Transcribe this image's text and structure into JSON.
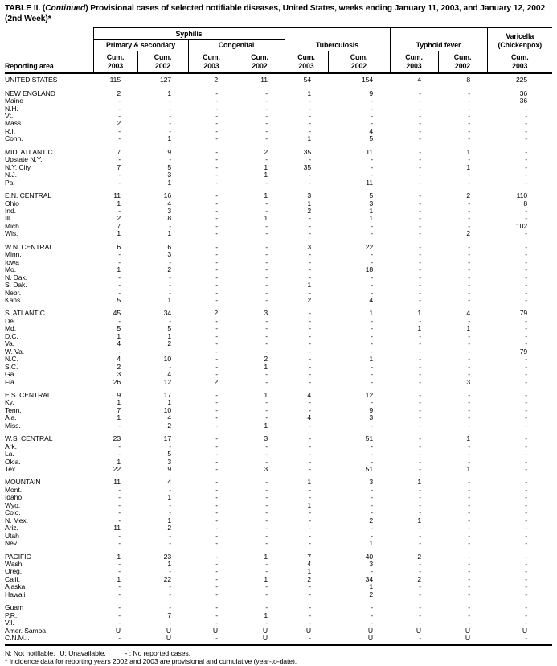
{
  "title": {
    "part1": "TABLE II. (",
    "part2_italic": "Continued",
    "part3": ") Provisional cases of selected notifiable diseases, United States, weeks ending January 11, 2003, and January 12, 2002",
    "line2": "(2nd Week)*"
  },
  "header": {
    "reporting_area_label": "Reporting area",
    "syphilis": "Syphilis",
    "primary_secondary": "Primary & secondary",
    "congenital": "Congenital",
    "tuberculosis": "Tuberculosis",
    "typhoid": "Typhoid fever",
    "varicella_line1": "Varicella",
    "varicella_line2": "(Chickenpox)",
    "cum_label": "Cum.",
    "years": [
      "2003",
      "2002",
      "2003",
      "2002",
      "2003",
      "2002",
      "2003",
      "2002",
      "2003"
    ]
  },
  "sections": [
    {
      "rows": [
        [
          "UNITED STATES",
          "115",
          "127",
          "2",
          "11",
          "54",
          "154",
          "4",
          "8",
          "225"
        ]
      ]
    },
    {
      "rows": [
        [
          "NEW ENGLAND",
          "2",
          "1",
          "-",
          "-",
          "1",
          "9",
          "-",
          "-",
          "36"
        ],
        [
          "Maine",
          "-",
          "-",
          "-",
          "-",
          "-",
          "-",
          "-",
          "-",
          "36"
        ],
        [
          "N.H.",
          "-",
          "-",
          "-",
          "-",
          "-",
          "-",
          "-",
          "-",
          "-"
        ],
        [
          "Vt.",
          "-",
          "-",
          "-",
          "-",
          "-",
          "-",
          "-",
          "-",
          "-"
        ],
        [
          "Mass.",
          "2",
          "-",
          "-",
          "-",
          "-",
          "-",
          "-",
          "-",
          "-"
        ],
        [
          "R.I.",
          "-",
          "-",
          "-",
          "-",
          "-",
          "4",
          "-",
          "-",
          "-"
        ],
        [
          "Conn.",
          "-",
          "1",
          "-",
          "-",
          "1",
          "5",
          "-",
          "-",
          "-"
        ]
      ]
    },
    {
      "rows": [
        [
          "MID. ATLANTIC",
          "7",
          "9",
          "-",
          "2",
          "35",
          "11",
          "-",
          "1",
          "-"
        ],
        [
          "Upstate N.Y.",
          "-",
          "-",
          "-",
          "-",
          "-",
          "-",
          "-",
          "-",
          "-"
        ],
        [
          "N.Y. City",
          "7",
          "5",
          "-",
          "1",
          "35",
          "-",
          "-",
          "1",
          "-"
        ],
        [
          "N.J.",
          "-",
          "3",
          "-",
          "1",
          "-",
          "-",
          "-",
          "-",
          "-"
        ],
        [
          "Pa.",
          "-",
          "1",
          "-",
          "-",
          "-",
          "11",
          "-",
          "-",
          "-"
        ]
      ]
    },
    {
      "rows": [
        [
          "E.N. CENTRAL",
          "11",
          "16",
          "-",
          "1",
          "3",
          "5",
          "-",
          "2",
          "110"
        ],
        [
          "Ohio",
          "1",
          "4",
          "-",
          "-",
          "1",
          "3",
          "-",
          "-",
          "8"
        ],
        [
          "Ind.",
          "-",
          "3",
          "-",
          "-",
          "2",
          "1",
          "-",
          "-",
          "-"
        ],
        [
          "Ill.",
          "2",
          "8",
          "-",
          "1",
          "-",
          "1",
          "-",
          "-",
          "-"
        ],
        [
          "Mich.",
          "7",
          "-",
          "-",
          "-",
          "-",
          "-",
          "-",
          "-",
          "102"
        ],
        [
          "Wis.",
          "1",
          "1",
          "-",
          "-",
          "-",
          "-",
          "-",
          "2",
          "-"
        ]
      ]
    },
    {
      "rows": [
        [
          "W.N. CENTRAL",
          "6",
          "6",
          "-",
          "-",
          "3",
          "22",
          "-",
          "-",
          "-"
        ],
        [
          "Minn.",
          "-",
          "3",
          "-",
          "-",
          "-",
          "-",
          "-",
          "-",
          "-"
        ],
        [
          "Iowa",
          "-",
          "-",
          "-",
          "-",
          "-",
          "-",
          "-",
          "-",
          "-"
        ],
        [
          "Mo.",
          "1",
          "2",
          "-",
          "-",
          "-",
          "18",
          "-",
          "-",
          "-"
        ],
        [
          "N. Dak.",
          "-",
          "-",
          "-",
          "-",
          "-",
          "-",
          "-",
          "-",
          "-"
        ],
        [
          "S. Dak.",
          "-",
          "-",
          "-",
          "-",
          "1",
          "-",
          "-",
          "-",
          "-"
        ],
        [
          "Nebr.",
          "-",
          "-",
          "-",
          "-",
          "-",
          "-",
          "-",
          "-",
          "-"
        ],
        [
          "Kans.",
          "5",
          "1",
          "-",
          "-",
          "2",
          "4",
          "-",
          "-",
          "-"
        ]
      ]
    },
    {
      "rows": [
        [
          "S. ATLANTIC",
          "45",
          "34",
          "2",
          "3",
          "-",
          "1",
          "1",
          "4",
          "79"
        ],
        [
          "Del.",
          "-",
          "-",
          "-",
          "-",
          "-",
          "-",
          "-",
          "-",
          "-"
        ],
        [
          "Md.",
          "5",
          "5",
          "-",
          "-",
          "-",
          "-",
          "1",
          "1",
          "-"
        ],
        [
          "D.C.",
          "1",
          "1",
          "-",
          "-",
          "-",
          "-",
          "-",
          "-",
          "-"
        ],
        [
          "Va.",
          "4",
          "2",
          "-",
          "-",
          "-",
          "-",
          "-",
          "-",
          "-"
        ],
        [
          "W. Va.",
          "-",
          "-",
          "-",
          "-",
          "-",
          "-",
          "-",
          "-",
          "79"
        ],
        [
          "N.C.",
          "4",
          "10",
          "-",
          "2",
          "-",
          "1",
          "-",
          "-",
          "-"
        ],
        [
          "S.C.",
          "2",
          "-",
          "-",
          "1",
          "-",
          "-",
          "-",
          "-",
          "-"
        ],
        [
          "Ga.",
          "3",
          "4",
          "-",
          "-",
          "-",
          "-",
          "-",
          "-",
          "-"
        ],
        [
          "Fla.",
          "26",
          "12",
          "2",
          "-",
          "-",
          "-",
          "-",
          "3",
          "-"
        ]
      ]
    },
    {
      "rows": [
        [
          "E.S. CENTRAL",
          "9",
          "17",
          "-",
          "1",
          "4",
          "12",
          "-",
          "-",
          "-"
        ],
        [
          "Ky.",
          "1",
          "1",
          "-",
          "-",
          "-",
          "-",
          "-",
          "-",
          "-"
        ],
        [
          "Tenn.",
          "7",
          "10",
          "-",
          "-",
          "-",
          "9",
          "-",
          "-",
          "-"
        ],
        [
          "Ala.",
          "1",
          "4",
          "-",
          "-",
          "4",
          "3",
          "-",
          "-",
          "-"
        ],
        [
          "Miss.",
          "-",
          "2",
          "-",
          "1",
          "-",
          "-",
          "-",
          "-",
          "-"
        ]
      ]
    },
    {
      "rows": [
        [
          "W.S. CENTRAL",
          "23",
          "17",
          "-",
          "3",
          "-",
          "51",
          "-",
          "1",
          "-"
        ],
        [
          "Ark.",
          "-",
          "-",
          "-",
          "-",
          "-",
          "-",
          "-",
          "-",
          "-"
        ],
        [
          "La.",
          "-",
          "5",
          "-",
          "-",
          "-",
          "-",
          "-",
          "-",
          "-"
        ],
        [
          "Okla.",
          "1",
          "3",
          "-",
          "-",
          "-",
          "-",
          "-",
          "-",
          "-"
        ],
        [
          "Tex.",
          "22",
          "9",
          "-",
          "3",
          "-",
          "51",
          "-",
          "1",
          "-"
        ]
      ]
    },
    {
      "rows": [
        [
          "MOUNTAIN",
          "11",
          "4",
          "-",
          "-",
          "1",
          "3",
          "1",
          "-",
          "-"
        ],
        [
          "Mont.",
          "-",
          "-",
          "-",
          "-",
          "-",
          "-",
          "-",
          "-",
          "-"
        ],
        [
          "Idaho",
          "-",
          "1",
          "-",
          "-",
          "-",
          "-",
          "-",
          "-",
          "-"
        ],
        [
          "Wyo.",
          "-",
          "-",
          "-",
          "-",
          "1",
          "-",
          "-",
          "-",
          "-"
        ],
        [
          "Colo.",
          "-",
          "-",
          "-",
          "-",
          "-",
          "-",
          "-",
          "-",
          "-"
        ],
        [
          "N. Mex.",
          "-",
          "1",
          "-",
          "-",
          "-",
          "2",
          "1",
          "-",
          "-"
        ],
        [
          "Ariz.",
          "11",
          "2",
          "-",
          "-",
          "-",
          "-",
          "-",
          "-",
          "-"
        ],
        [
          "Utah",
          "-",
          "-",
          "-",
          "-",
          "-",
          "-",
          "-",
          "-",
          "-"
        ],
        [
          "Nev.",
          "-",
          "-",
          "-",
          "-",
          "-",
          "1",
          "-",
          "-",
          "-"
        ]
      ]
    },
    {
      "rows": [
        [
          "PACIFIC",
          "1",
          "23",
          "-",
          "1",
          "7",
          "40",
          "2",
          "-",
          "-"
        ],
        [
          "Wash.",
          "-",
          "1",
          "-",
          "-",
          "4",
          "3",
          "-",
          "-",
          "-"
        ],
        [
          "Oreg.",
          "-",
          "-",
          "-",
          "-",
          "1",
          "-",
          "-",
          "-",
          "-"
        ],
        [
          "Calif.",
          "1",
          "22",
          "-",
          "1",
          "2",
          "34",
          "2",
          "-",
          "-"
        ],
        [
          "Alaska",
          "-",
          "-",
          "-",
          "-",
          "-",
          "1",
          "-",
          "-",
          "-"
        ],
        [
          "Hawaii",
          "-",
          "-",
          "-",
          "-",
          "-",
          "2",
          "-",
          "-",
          "-"
        ]
      ]
    },
    {
      "rows": [
        [
          "Guam",
          "-",
          "-",
          "-",
          "-",
          "-",
          "-",
          "-",
          "-",
          "-"
        ],
        [
          "P.R.",
          "-",
          "7",
          "-",
          "1",
          "-",
          "-",
          "-",
          "-",
          "-"
        ],
        [
          "V.I.",
          "-",
          "-",
          "-",
          "-",
          "-",
          "-",
          "-",
          "-",
          "-"
        ],
        [
          "Amer. Samoa",
          "U",
          "U",
          "U",
          "U",
          "U",
          "U",
          "U",
          "U",
          "U"
        ],
        [
          "C.N.M.I.",
          "-",
          "U",
          "-",
          "U",
          "-",
          "U",
          "-",
          "U",
          "-"
        ]
      ]
    }
  ],
  "footnotes": {
    "not_notifiable": "N: Not notifiable.",
    "unavailable": "U: Unavailable.",
    "no_reported": "- : No reported cases.",
    "incidence": "* Incidence data for reporting years 2002 and 2003 are provisional and cumulative (year-to-date)."
  }
}
